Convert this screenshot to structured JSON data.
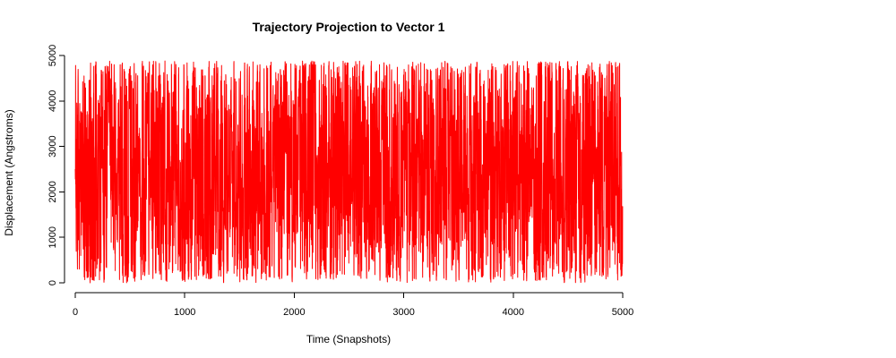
{
  "chart_data": {
    "type": "line",
    "title": "Trajectory Projection to Vector 1",
    "xlabel": "Time (Snapshots)",
    "ylabel": "Displacement (Angstroms)",
    "xlim": [
      0,
      5000
    ],
    "ylim": [
      0,
      5000
    ],
    "x_ticks": [
      0,
      1000,
      2000,
      3000,
      4000,
      5000
    ],
    "y_ticks": [
      0,
      1000,
      2000,
      3000,
      4000,
      5000
    ],
    "x_tick_labels": [
      "0",
      "1000",
      "2000",
      "3000",
      "4000",
      "5000"
    ],
    "y_tick_labels": [
      "0",
      "1000",
      "2000",
      "3000",
      "4000",
      "5000"
    ],
    "grid": false,
    "series": [
      {
        "color": "#ff0000",
        "x_range": [
          0,
          5000
        ],
        "y_range": [
          0,
          4880
        ],
        "n_points": 5000
      }
    ]
  }
}
